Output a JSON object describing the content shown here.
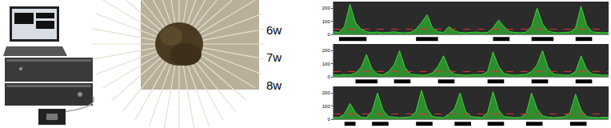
{
  "chart_data": [
    {
      "type": "line",
      "title": "6w",
      "color": "#33dd33",
      "xlim": [
        0,
        100
      ],
      "ylim": [
        0,
        250
      ],
      "yticks": [
        0,
        100,
        200
      ],
      "tick_labels": "y",
      "grid": false,
      "threshold": 40,
      "x": [
        0,
        2,
        4,
        6,
        8,
        10,
        12,
        14,
        16,
        18,
        20,
        22,
        24,
        26,
        28,
        30,
        32,
        34,
        36,
        38,
        40,
        42,
        44,
        46,
        48,
        50,
        52,
        54,
        56,
        58,
        60,
        62,
        64,
        66,
        68,
        70,
        72,
        74,
        76,
        78,
        80,
        82,
        84,
        86,
        88,
        90,
        92,
        94,
        96,
        98,
        100
      ],
      "values": [
        20,
        15,
        60,
        230,
        90,
        40,
        20,
        15,
        18,
        12,
        15,
        20,
        14,
        12,
        15,
        40,
        90,
        150,
        50,
        20,
        15,
        60,
        25,
        15,
        12,
        15,
        18,
        12,
        15,
        50,
        110,
        60,
        20,
        15,
        12,
        18,
        60,
        200,
        80,
        25,
        15,
        12,
        15,
        18,
        50,
        215,
        70,
        20,
        15,
        12,
        15
      ],
      "bursts": [
        [
          2,
          12
        ],
        [
          30,
          38
        ],
        [
          58,
          64
        ],
        [
          72,
          80
        ],
        [
          88,
          94
        ]
      ]
    },
    {
      "type": "line",
      "title": "7w",
      "color": "#33dd33",
      "xlim": [
        0,
        100
      ],
      "ylim": [
        0,
        250
      ],
      "yticks": [
        0,
        100,
        200
      ],
      "tick_labels": "y",
      "grid": false,
      "threshold": 40,
      "x": [
        0,
        2,
        4,
        6,
        8,
        10,
        12,
        14,
        16,
        18,
        20,
        22,
        24,
        26,
        28,
        30,
        32,
        34,
        36,
        38,
        40,
        42,
        44,
        46,
        48,
        50,
        52,
        54,
        56,
        58,
        60,
        62,
        64,
        66,
        68,
        70,
        72,
        74,
        76,
        78,
        80,
        82,
        84,
        86,
        88,
        90,
        92,
        94,
        96,
        98,
        100
      ],
      "values": [
        15,
        12,
        18,
        14,
        30,
        70,
        170,
        60,
        20,
        15,
        40,
        90,
        200,
        70,
        20,
        15,
        12,
        14,
        30,
        80,
        160,
        60,
        20,
        15,
        12,
        14,
        18,
        15,
        40,
        190,
        80,
        25,
        15,
        12,
        14,
        18,
        40,
        90,
        200,
        70,
        20,
        15,
        12,
        14,
        40,
        160,
        60,
        20,
        15,
        12,
        14
      ],
      "bursts": [
        [
          8,
          16
        ],
        [
          22,
          28
        ],
        [
          38,
          44
        ],
        [
          56,
          62
        ],
        [
          72,
          78
        ],
        [
          88,
          94
        ]
      ]
    },
    {
      "type": "line",
      "title": "8w",
      "color": "#33dd33",
      "xlim": [
        0,
        100
      ],
      "ylim": [
        0,
        250
      ],
      "yticks": [
        0,
        100,
        200
      ],
      "tick_labels": "y",
      "grid": false,
      "threshold": 40,
      "x": [
        0,
        2,
        4,
        6,
        8,
        10,
        12,
        14,
        16,
        18,
        20,
        22,
        24,
        26,
        28,
        30,
        32,
        34,
        36,
        38,
        40,
        42,
        44,
        46,
        48,
        50,
        52,
        54,
        56,
        58,
        60,
        62,
        64,
        66,
        68,
        70,
        72,
        74,
        76,
        78,
        80,
        82,
        84,
        86,
        88,
        90,
        92,
        94,
        96,
        98,
        100
      ],
      "values": [
        15,
        12,
        40,
        120,
        50,
        15,
        12,
        60,
        200,
        70,
        20,
        15,
        12,
        14,
        18,
        60,
        220,
        80,
        20,
        15,
        12,
        40,
        80,
        200,
        60,
        20,
        15,
        12,
        50,
        210,
        70,
        20,
        15,
        12,
        14,
        40,
        200,
        80,
        25,
        15,
        12,
        14,
        18,
        50,
        190,
        70,
        20,
        15,
        12,
        14,
        15
      ],
      "bursts": [
        [
          4,
          8
        ],
        [
          14,
          20
        ],
        [
          30,
          36
        ],
        [
          44,
          50
        ],
        [
          56,
          62
        ],
        [
          70,
          76
        ],
        [
          86,
          92
        ]
      ]
    }
  ]
}
